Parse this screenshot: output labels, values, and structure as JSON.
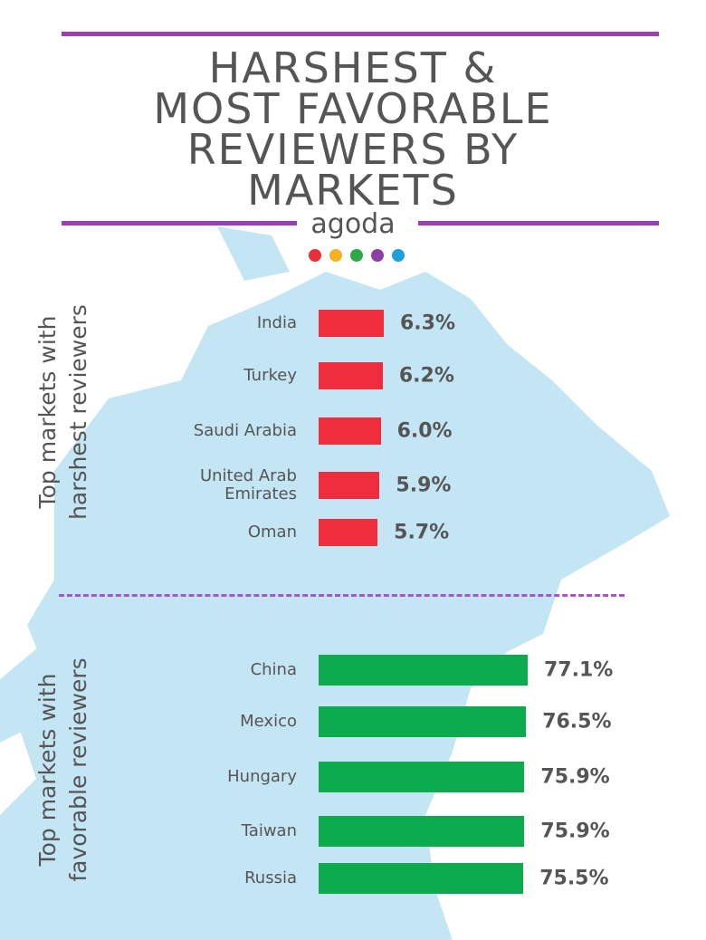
{
  "header": {
    "title_lines": [
      "HARSHEST &",
      "MOST FAVORABLE",
      "REVIEWERS BY",
      "MARKETS"
    ],
    "brand": "agoda"
  },
  "chart_data": [
    {
      "type": "bar",
      "orientation": "horizontal",
      "title": "Top markets with harshest reviewers",
      "categories": [
        "India",
        "Turkey",
        "Saudi Arabia",
        "United Arab Emirates",
        "Oman"
      ],
      "values": [
        6.3,
        6.2,
        6.0,
        5.9,
        5.7
      ],
      "value_labels": [
        "6.3%",
        "6.2%",
        "6.0%",
        "5.9%",
        "5.7%"
      ],
      "color": "#ef2d3c"
    },
    {
      "type": "bar",
      "orientation": "horizontal",
      "title": "Top markets with favorable reviewers",
      "categories": [
        "China",
        "Mexico",
        "Hungary",
        "Taiwan",
        "Russia"
      ],
      "values": [
        77.1,
        76.5,
        75.9,
        75.9,
        75.5
      ],
      "value_labels": [
        "77.1%",
        "76.5%",
        "75.9%",
        "75.9%",
        "75.5%"
      ],
      "color": "#0bab4e"
    }
  ]
}
